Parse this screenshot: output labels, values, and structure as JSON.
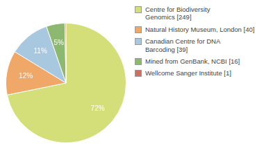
{
  "chart_data": {
    "type": "pie",
    "categories": [
      "Centre for Biodiversity\nGenomics [249]",
      "Natural History Museum, London [40]",
      "Canadian Centre for DNA\nBarcoding [39]",
      "Mined from GenBank, NCBI [16]",
      "Wellcome Sanger Institute [1]"
    ],
    "values": [
      72,
      12,
      11,
      5,
      0.3
    ],
    "value_labels": [
      "72%",
      "12%",
      "11%",
      "5%",
      null
    ],
    "colors": [
      "#d4df7a",
      "#f0a868",
      "#a8c8e0",
      "#8db870",
      "#cc7060"
    ],
    "data_labels": true,
    "legend": "right"
  }
}
